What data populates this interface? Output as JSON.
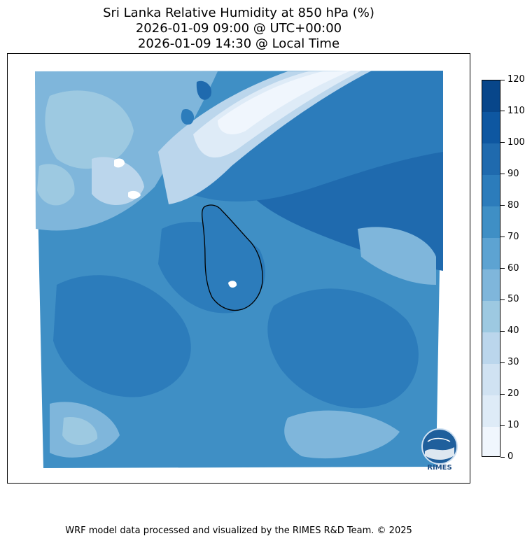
{
  "header": {
    "line1": "Sri Lanka Relative Humidity at 850 hPa (%)",
    "line2": "2026-01-09 09:00 @ UTC+00:00",
    "line3": "2026-01-09 14:30 @ Local Time"
  },
  "colorbar": {
    "ticks": [
      "0",
      "10",
      "20",
      "30",
      "40",
      "50",
      "60",
      "70",
      "80",
      "90",
      "100",
      "110",
      "120"
    ],
    "colors": [
      "#f0f6fd",
      "#deebf7",
      "#d0e2f2",
      "#bbd6ec",
      "#9dc9e1",
      "#7fb6db",
      "#5da3d2",
      "#3f8fc5",
      "#2c7cbb",
      "#1f6aae",
      "#0e57a1",
      "#08468a"
    ]
  },
  "logo": {
    "text": "RIMES"
  },
  "footer": {
    "credit": "WRF model data processed and visualized by the RIMES R&D Team. © 2025"
  }
}
